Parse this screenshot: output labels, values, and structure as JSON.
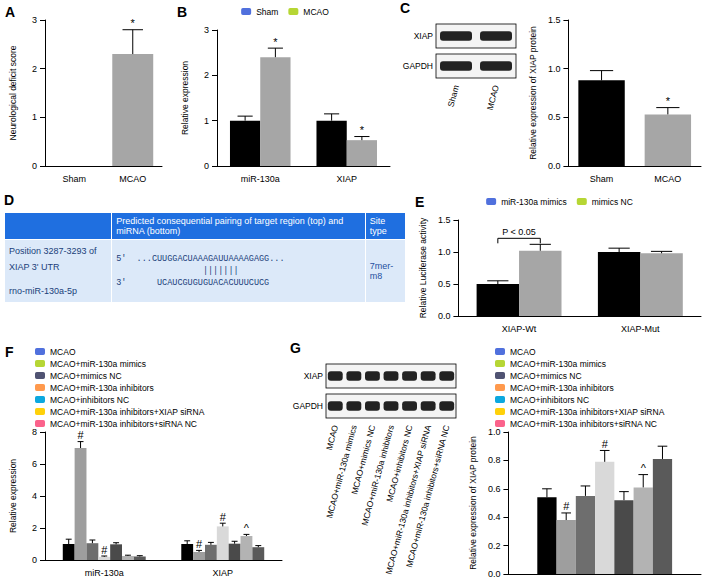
{
  "chart_data": [
    {
      "title": "A",
      "type": "bar",
      "categories": [
        "Sham",
        "MCAO"
      ],
      "values": [
        0,
        2.3
      ],
      "errors": [
        0,
        0.5
      ],
      "annotations": [
        null,
        "*"
      ],
      "colors": [
        "#000000",
        "#a6a6a6"
      ],
      "y_label": "Neurological deficit score",
      "ylim": [
        0,
        3
      ],
      "yticks": [
        0,
        1,
        2,
        3
      ],
      "grid": false
    },
    {
      "title": "B",
      "type": "bar",
      "categories": [
        "miR-130a",
        "XIAP"
      ],
      "series": [
        {
          "name": "Sham",
          "color": "#000000",
          "values": [
            1.0,
            1.0
          ],
          "errors": [
            0.1,
            0.15
          ],
          "annotations": [
            null,
            null
          ]
        },
        {
          "name": "MCAO",
          "color": "#a6a6a6",
          "values": [
            2.4,
            0.57
          ],
          "errors": [
            0.2,
            0.08
          ],
          "annotations": [
            "*",
            "*"
          ]
        }
      ],
      "y_label": "Relative expression",
      "ylim": [
        0,
        3
      ],
      "yticks": [
        0,
        1,
        2,
        3
      ],
      "legend": "top",
      "grid": false
    },
    {
      "type": "bar",
      "categories": [
        "Sham",
        "MCAO"
      ],
      "values": [
        0.88,
        0.53
      ],
      "errors": [
        0.1,
        0.07
      ],
      "annotations": [
        null,
        "*"
      ],
      "colors": [
        "#000000",
        "#a6a6a6"
      ],
      "y_label": "Relative expression of XIAP protein",
      "ylim": [
        0,
        1.5
      ],
      "yticks": [
        {
          "value": 0,
          "label": "0.0"
        },
        0.5,
        {
          "value": 1,
          "label": "1.0"
        },
        1.5
      ],
      "grid": false
    },
    {
      "title": "E",
      "type": "bar",
      "categories": [
        "XIAP-Wt",
        "XIAP-Mut"
      ],
      "series": [
        {
          "name": "miR-130a mimics",
          "color": "#000000",
          "values": [
            0.5,
            1.0
          ],
          "errors": [
            0.05,
            0.06
          ],
          "annotations": [
            null,
            null
          ]
        },
        {
          "name": "mimics NC",
          "color": "#a6a6a6",
          "values": [
            1.02,
            0.98
          ],
          "errors": [
            0.1,
            0.03
          ],
          "annotations": [
            null,
            null
          ]
        }
      ],
      "annotation": {
        "text": "P < 0.05",
        "category": "XIAP-Wt"
      },
      "y_label": "Relative Luciferase activity",
      "ylim": [
        0,
        1.5
      ],
      "yticks": [
        {
          "value": 0,
          "label": "0.0"
        },
        0.5,
        {
          "value": 1,
          "label": "1.0"
        },
        1.5
      ],
      "legend": "top",
      "grid": false
    },
    {
      "title": "F",
      "type": "bar",
      "categories": [
        "miR-130a",
        "XIAP"
      ],
      "series": [
        {
          "name": "MCAO",
          "color": "#000000",
          "values": [
            1.0,
            1.0
          ],
          "errors": [
            0.3,
            0.2
          ],
          "annotations": [
            null,
            null
          ]
        },
        {
          "name": "MCAO+miR-130a mimics",
          "color": "#9e9e9e",
          "values": [
            7.0,
            0.5
          ],
          "errors": [
            0.4,
            0.1
          ],
          "annotations": [
            "#",
            "#"
          ]
        },
        {
          "name": "MCAO+mimics NC",
          "color": "#6e6e6e",
          "values": [
            1.05,
            0.95
          ],
          "errors": [
            0.2,
            0.15
          ],
          "annotations": [
            null,
            null
          ]
        },
        {
          "name": "MCAO+miR-130a inhibitors",
          "color": "#d9d9d9",
          "values": [
            0.2,
            2.1
          ],
          "errors": [
            0.05,
            0.2
          ],
          "annotations": [
            "#",
            "#"
          ]
        },
        {
          "name": "MCAO+inhibitors NC",
          "color": "#4a4a4a",
          "values": [
            0.98,
            1.02
          ],
          "errors": [
            0.1,
            0.15
          ],
          "annotations": [
            null,
            null
          ]
        },
        {
          "name": "MCAO+miR-130a inhibitors+XIAP siRNA",
          "color": "#b3b3b3",
          "values": [
            0.25,
            1.5
          ],
          "errors": [
            0.05,
            0.1
          ],
          "annotations": [
            null,
            "^"
          ]
        },
        {
          "name": "MCAO+miR-130a inhibitors+siRNA NC",
          "color": "#5a5a5a",
          "values": [
            0.22,
            0.8
          ],
          "errors": [
            0.05,
            0.1
          ],
          "annotations": [
            null,
            null
          ]
        }
      ],
      "y_label": "Relative expression",
      "ylim": [
        0,
        8
      ],
      "yticks": [
        0,
        2,
        4,
        6,
        8
      ],
      "legend": "top-left",
      "grid": false
    },
    {
      "type": "bar",
      "categories": [
        null
      ],
      "series": [
        {
          "name": "MCAO",
          "color": "#000000",
          "values": [
            0.54
          ],
          "errors": [
            0.06
          ],
          "annotations": [
            null
          ]
        },
        {
          "name": "MCAO+miR-130a mimics",
          "color": "#9e9e9e",
          "values": [
            0.38
          ],
          "errors": [
            0.05
          ],
          "annotations": [
            "#"
          ]
        },
        {
          "name": "MCAO+mimics NC",
          "color": "#6e6e6e",
          "values": [
            0.55
          ],
          "errors": [
            0.07
          ],
          "annotations": [
            null
          ]
        },
        {
          "name": "MCAO+miR-130a inhibitors",
          "color": "#d9d9d9",
          "values": [
            0.79
          ],
          "errors": [
            0.08
          ],
          "annotations": [
            "#"
          ]
        },
        {
          "name": "MCAO+inhibitors NC",
          "color": "#4a4a4a",
          "values": [
            0.52
          ],
          "errors": [
            0.06
          ],
          "annotations": [
            null
          ]
        },
        {
          "name": "MCAO+miR-130a inhibitors+XIAP siRNA",
          "color": "#b3b3b3",
          "values": [
            0.61
          ],
          "errors": [
            0.09
          ],
          "annotations": [
            "^"
          ]
        },
        {
          "name": "MCAO+miR-130a inhibitors+siRNA NC",
          "color": "#5a5a5a",
          "values": [
            0.81
          ],
          "errors": [
            0.09
          ],
          "annotations": [
            null
          ]
        }
      ],
      "y_label": "Relative expression of XIAP protein",
      "ylim": [
        0,
        1
      ],
      "yticks": [
        {
          "value": 0,
          "label": "0.0"
        },
        0.2,
        0.4,
        0.6,
        0.8,
        {
          "value": 1,
          "label": "1.0"
        }
      ],
      "legend": "top-left",
      "tick_labels": "y",
      "grid": false
    }
  ],
  "blots": [
    {
      "title": "C",
      "rows": [
        "XIAP",
        "GAPDH"
      ],
      "lanes": [
        "Sham",
        "MCAO"
      ]
    },
    {
      "title": "G",
      "rows": [
        "XIAP",
        "GAPDH"
      ],
      "lanes": [
        "MCAO",
        "MCAO+miR-130a mimics",
        "MCAO+mimics NC",
        "MCAO+miR-130a inhibitors",
        "MCAO+inhibitors NC",
        "MCAO+miR-130a inhibitors+XIAP siRNA",
        "MCAO+miR-130a inhibitors+siRNA NC"
      ]
    }
  ],
  "table": {
    "title": "D",
    "header": [
      "Predicted consequential pairing of target region (top) and miRNA (bottom)",
      "Site type"
    ],
    "target": {
      "label": "Position 3287-3293 of XIAP 3' UTR",
      "sequence": "5'  ...CUUGGACUAAAGAUUAAAAGAGG...",
      "pairing": "|||||||"
    },
    "mirna": {
      "label": "rno-miR-130a-5p",
      "sequence": "3'      UCAUCGUGUGUACACUUUCUCG"
    },
    "site_type": "7mer-m8"
  }
}
